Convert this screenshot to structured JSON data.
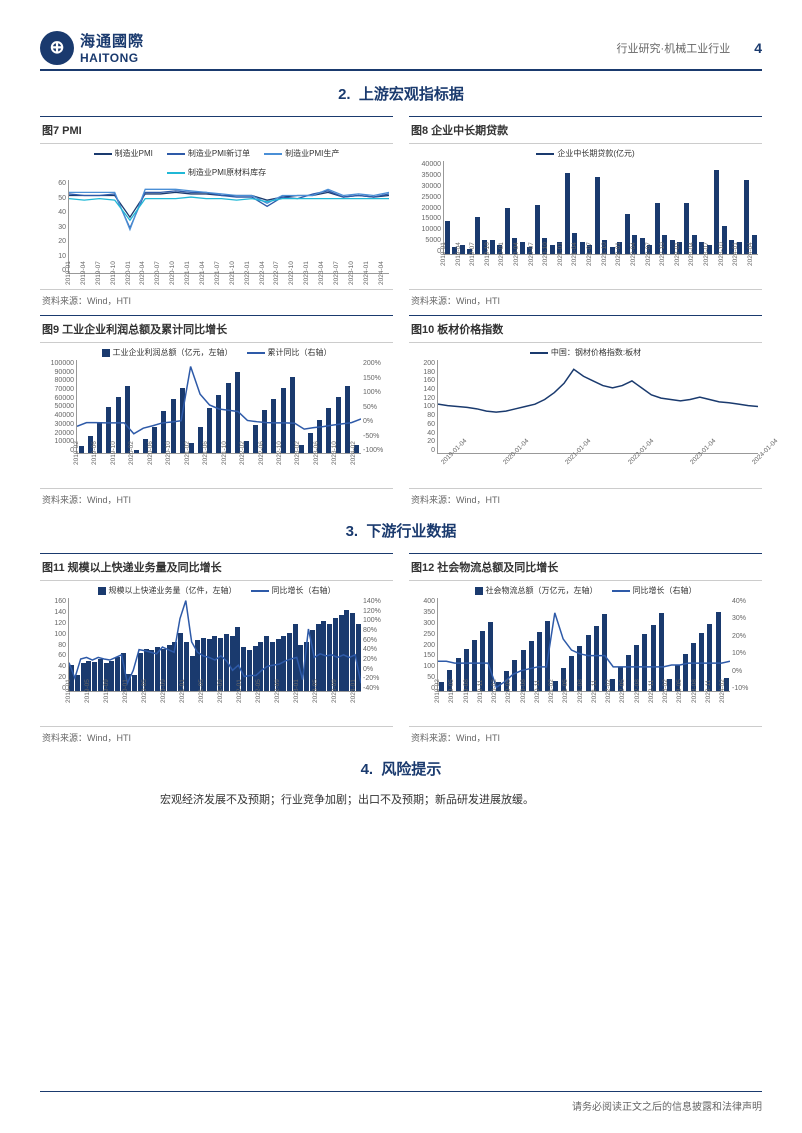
{
  "header": {
    "logo_cn": "海通國際",
    "logo_en": "HAITONG",
    "category": "行业研究·机械工业行业",
    "page_num": "4"
  },
  "section2": {
    "num": "2.",
    "title": "上游宏观指标据"
  },
  "section3": {
    "num": "3.",
    "title": "下游行业数据"
  },
  "section4": {
    "num": "4.",
    "title": "风险提示"
  },
  "source_label": "资料来源：Wind，HTI",
  "fig7": {
    "title": "图7  PMI",
    "legend": [
      {
        "label": "制造业PMI",
        "color": "#1a3a6e"
      },
      {
        "label": "制造业PMI新订单",
        "color": "#2e5aa8"
      },
      {
        "label": "制造业PMI生产",
        "color": "#4a8fd6"
      },
      {
        "label": "制造业PMI原材料库存",
        "color": "#20b8d6"
      }
    ],
    "y": [
      0,
      10,
      20,
      30,
      40,
      50,
      60
    ],
    "x": [
      "2019-01",
      "2019-04",
      "2019-07",
      "2019-10",
      "2020-01",
      "2020-04",
      "2020-07",
      "2020-10",
      "2021-01",
      "2021-04",
      "2021-07",
      "2021-10",
      "2022-01",
      "2022-04",
      "2022-07",
      "2022-10",
      "2023-01",
      "2023-04",
      "2023-07",
      "2023-10",
      "2024-01",
      "2024-04"
    ],
    "series": [
      [
        50,
        50,
        50,
        50,
        36,
        51,
        51,
        52,
        51,
        51,
        50,
        50,
        50,
        47,
        49,
        50,
        50,
        52,
        49,
        50,
        49,
        50
      ],
      [
        51,
        50,
        50,
        51,
        29,
        52,
        52,
        53,
        52,
        52,
        50,
        49,
        49,
        43,
        49,
        48,
        51,
        53,
        49,
        50,
        49,
        51
      ],
      [
        52,
        52,
        52,
        52,
        28,
        54,
        54,
        54,
        53,
        52,
        51,
        50,
        50,
        45,
        50,
        50,
        50,
        54,
        50,
        51,
        50,
        52
      ],
      [
        48,
        47,
        48,
        47,
        34,
        48,
        48,
        48,
        49,
        48,
        48,
        47,
        48,
        46,
        48,
        48,
        48,
        48,
        48,
        48,
        48,
        48
      ]
    ]
  },
  "fig8": {
    "title": "图8  企业中长期贷款",
    "legend": [
      {
        "label": "企业中长期贷款(亿元)",
        "color": "#1a3a6e"
      }
    ],
    "y": [
      0,
      5000,
      10000,
      15000,
      20000,
      25000,
      30000,
      35000,
      40000
    ],
    "x": [
      "2019-01",
      "2019-04",
      "2019-07",
      "2019-10",
      "2020-01",
      "2020-04",
      "2020-07",
      "2020-10",
      "2021-01",
      "2021-04",
      "2021-07",
      "2021-10",
      "2022-01",
      "2022-04",
      "2022-07",
      "2022-10",
      "2023-01",
      "2023-04",
      "2023-07",
      "2023-10",
      "2024-01",
      "2024-04"
    ],
    "values": [
      14000,
      3000,
      4000,
      2000,
      16000,
      6000,
      6000,
      4000,
      20000,
      7000,
      5000,
      3000,
      21000,
      7000,
      4000,
      5000,
      35000,
      9000,
      5000,
      4000,
      33000,
      6000,
      3000,
      5000,
      17000,
      8000,
      7000,
      4000,
      22000,
      8000,
      6000,
      5000,
      22000,
      8000,
      5000,
      4000,
      36000,
      12000,
      6000,
      5000,
      32000,
      8000
    ]
  },
  "fig9": {
    "title": "图9  工业企业利润总额及累计同比增长",
    "legend": [
      {
        "label": "工业企业利润总额（亿元，左轴）",
        "color": "#1a3a6e",
        "type": "bar"
      },
      {
        "label": "累计同比（右轴）",
        "color": "#2e5aa8",
        "type": "line"
      }
    ],
    "y_left": [
      0,
      10000,
      20000,
      30000,
      40000,
      50000,
      60000,
      70000,
      80000,
      90000,
      100000
    ],
    "y_right": [
      "-100%",
      "-50%",
      "0%",
      "50%",
      "100%",
      "150%",
      "200%"
    ],
    "x": [
      "2019-02",
      "2019-06",
      "2019-10",
      "2020-02",
      "2020-06",
      "2020-10",
      "2021-02",
      "2021-06",
      "2021-10",
      "2022-02",
      "2022-06",
      "2022-10",
      "2023-02",
      "2023-06",
      "2023-10",
      "2024-02"
    ],
    "bars": [
      8000,
      18000,
      32000,
      50000,
      60000,
      72000,
      3000,
      15000,
      28000,
      45000,
      58000,
      70000,
      11000,
      28000,
      48000,
      62000,
      75000,
      87000,
      13000,
      30000,
      46000,
      58000,
      70000,
      82000,
      9000,
      22000,
      35000,
      48000,
      60000,
      72000,
      9000
    ],
    "line": [
      -14,
      -2,
      -2,
      -3,
      -3,
      -3,
      -38,
      -20,
      -12,
      -3,
      0,
      4,
      179,
      90,
      55,
      42,
      38,
      34,
      5,
      1,
      -2,
      -3,
      -3,
      -4,
      -23,
      -18,
      -15,
      -10,
      -6,
      -2,
      10
    ]
  },
  "fig10": {
    "title": "图10 板材价格指数",
    "legend": [
      {
        "label": "中国：钢材价格指数:板材",
        "color": "#1a3a6e"
      }
    ],
    "y": [
      0,
      20,
      40,
      60,
      80,
      100,
      120,
      140,
      160,
      180,
      200
    ],
    "x": [
      "2019-01-04",
      "2020-01-04",
      "2021-01-04",
      "2022-01-04",
      "2023-01-04",
      "2024-01-04"
    ],
    "values": [
      105,
      102,
      100,
      98,
      95,
      90,
      88,
      90,
      95,
      100,
      105,
      115,
      130,
      150,
      180,
      165,
      155,
      145,
      140,
      145,
      155,
      140,
      125,
      118,
      115,
      112,
      115,
      120,
      115,
      110,
      108,
      105,
      102,
      100
    ]
  },
  "fig11": {
    "title": "图11 规模以上快递业务量及同比增长",
    "legend": [
      {
        "label": "规模以上快递业务量（亿件，左轴）",
        "color": "#1a3a6e",
        "type": "bar"
      },
      {
        "label": "同比增长（右轴）",
        "color": "#2e5aa8",
        "type": "line"
      }
    ],
    "y_left": [
      0,
      20,
      40,
      60,
      80,
      100,
      120,
      140,
      160
    ],
    "y_right": [
      "-40%",
      "-20%",
      "0%",
      "20%",
      "40%",
      "60%",
      "80%",
      "100%",
      "120%",
      "140%"
    ],
    "x": [
      "2019-01",
      "2019-05",
      "2019-09",
      "2020-01",
      "2020-05",
      "2020-09",
      "2021-01",
      "2021-05",
      "2021-09",
      "2022-01",
      "2022-05",
      "2022-09",
      "2023-01",
      "2023-05",
      "2023-09",
      "2024-01"
    ],
    "bars": [
      45,
      28,
      48,
      52,
      50,
      55,
      48,
      52,
      58,
      65,
      30,
      28,
      65,
      72,
      70,
      75,
      72,
      80,
      85,
      100,
      85,
      60,
      88,
      92,
      90,
      95,
      92,
      98,
      95,
      110,
      75,
      70,
      78,
      85,
      95,
      85,
      90,
      95,
      100,
      115,
      80,
      85,
      105,
      115,
      120,
      115,
      125,
      130,
      140,
      135,
      115
    ],
    "line": [
      15,
      -15,
      22,
      25,
      20,
      25,
      22,
      20,
      25,
      30,
      -25,
      0,
      40,
      38,
      35,
      32,
      45,
      40,
      35,
      100,
      135,
      55,
      35,
      28,
      25,
      20,
      28,
      18,
      0,
      10,
      -12,
      -10,
      -10,
      0,
      8,
      10,
      12,
      18,
      22,
      25,
      -18,
      80,
      25,
      32,
      28,
      30,
      25,
      30,
      25,
      30,
      -25
    ]
  },
  "fig12": {
    "title": "图12 社会物流总额及同比增长",
    "legend": [
      {
        "label": "社会物流总额（万亿元，左轴）",
        "color": "#1a3a6e",
        "type": "bar"
      },
      {
        "label": "同比增长（右轴）",
        "color": "#2e5aa8",
        "type": "line"
      }
    ],
    "y_left": [
      0,
      50,
      100,
      150,
      200,
      250,
      300,
      350,
      400
    ],
    "y_right": [
      "-10%",
      "0%",
      "10%",
      "20%",
      "30%",
      "40%"
    ],
    "x": [
      "2019-02",
      "2019-05",
      "2019-08",
      "2019-11",
      "2020-02",
      "2020-05",
      "2020-08",
      "2020-11",
      "2021-02",
      "2021-05",
      "2021-08",
      "2021-11",
      "2022-02",
      "2022-05",
      "2022-08",
      "2022-11",
      "2023-02",
      "2023-05",
      "2023-08",
      "2023-11",
      "2024-02"
    ],
    "bars": [
      40,
      90,
      140,
      180,
      220,
      260,
      295,
      38,
      85,
      135,
      175,
      215,
      255,
      300,
      45,
      100,
      150,
      195,
      240,
      280,
      330,
      50,
      105,
      155,
      200,
      245,
      285,
      335,
      52,
      110,
      160,
      205,
      250,
      290,
      340,
      55
    ],
    "line": [
      6,
      6,
      5,
      5,
      5,
      5,
      5,
      -8,
      -5,
      -1,
      1,
      2,
      3,
      3,
      32,
      18,
      12,
      10,
      9,
      9,
      9,
      3,
      3,
      3,
      3,
      3,
      3,
      3,
      4,
      4,
      5,
      5,
      5,
      5,
      5,
      6
    ]
  },
  "risk_text": "宏观经济发展不及预期；行业竞争加剧；出口不及预期；新品研发进展放缓。",
  "footer": "请务必阅读正文之后的信息披露和法律声明"
}
